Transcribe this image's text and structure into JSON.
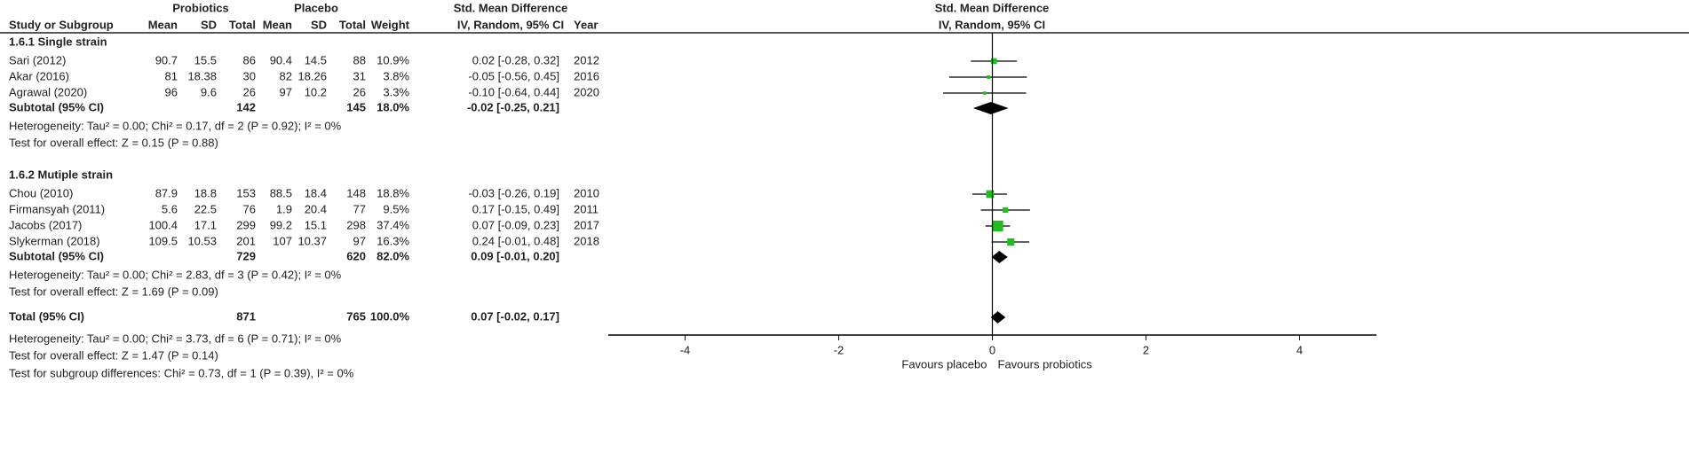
{
  "chart_data": {
    "type": "forest",
    "title": "Std. Mean Difference",
    "subtitle": "IV, Random, 95% CI",
    "headers": {
      "group1": "Probiotics",
      "group2": "Placebo",
      "effect": "Std. Mean Difference",
      "columns": [
        "Study or Subgroup",
        "Mean",
        "SD",
        "Total",
        "Mean",
        "SD",
        "Total",
        "Weight",
        "IV, Random, 95% CI",
        "Year"
      ]
    },
    "subgroups": [
      {
        "title": "1.6.1 Single strain",
        "studies": [
          {
            "study": "Sari (2012)",
            "mean1": 90.7,
            "sd1": 15.5,
            "total1": 86,
            "mean2": 90.4,
            "sd2": 14.5,
            "total2": 88,
            "weight": 10.9,
            "weight_label": "10.9%",
            "smd": 0.02,
            "lo": -0.28,
            "hi": 0.32,
            "ci_label": "0.02 [-0.28, 0.32]",
            "year": 2012
          },
          {
            "study": "Akar (2016)",
            "mean1": 81,
            "sd1": 18.38,
            "total1": 30,
            "mean2": 82,
            "sd2": 18.26,
            "total2": 31,
            "weight": 3.8,
            "weight_label": "3.8%",
            "smd": -0.05,
            "lo": -0.56,
            "hi": 0.45,
            "ci_label": "-0.05 [-0.56, 0.45]",
            "year": 2016
          },
          {
            "study": "Agrawal (2020)",
            "mean1": 96,
            "sd1": 9.6,
            "total1": 26,
            "mean2": 97,
            "sd2": 10.2,
            "total2": 26,
            "weight": 3.3,
            "weight_label": "3.3%",
            "smd": -0.1,
            "lo": -0.64,
            "hi": 0.44,
            "ci_label": "-0.10 [-0.64, 0.44]",
            "year": 2020
          }
        ],
        "subtotal": {
          "label": "Subtotal (95% CI)",
          "total1": 142,
          "total2": 145,
          "weight_label": "18.0%",
          "smd": -0.02,
          "lo": -0.25,
          "hi": 0.21,
          "ci_label": "-0.02 [-0.25, 0.21]"
        },
        "heterogeneity": "Heterogeneity: Tau² = 0.00; Chi² = 0.17, df = 2 (P = 0.92); I² = 0%",
        "overall_effect": "Test for overall effect: Z = 0.15 (P = 0.88)"
      },
      {
        "title": "1.6.2 Mutiple strain",
        "studies": [
          {
            "study": "Chou (2010)",
            "mean1": 87.9,
            "sd1": 18.8,
            "total1": 153,
            "mean2": 88.5,
            "sd2": 18.4,
            "total2": 148,
            "weight": 18.8,
            "weight_label": "18.8%",
            "smd": -0.03,
            "lo": -0.26,
            "hi": 0.19,
            "ci_label": "-0.03 [-0.26, 0.19]",
            "year": 2010
          },
          {
            "study": "Firmansyah (2011)",
            "mean1": 5.6,
            "sd1": 22.5,
            "total1": 76,
            "mean2": 1.9,
            "sd2": 20.4,
            "total2": 77,
            "weight": 9.5,
            "weight_label": "9.5%",
            "smd": 0.17,
            "lo": -0.15,
            "hi": 0.49,
            "ci_label": "0.17 [-0.15, 0.49]",
            "year": 2011
          },
          {
            "study": "Jacobs (2017)",
            "mean1": 100.4,
            "sd1": 17.1,
            "total1": 299,
            "mean2": 99.2,
            "sd2": 15.1,
            "total2": 298,
            "weight": 37.4,
            "weight_label": "37.4%",
            "smd": 0.07,
            "lo": -0.09,
            "hi": 0.23,
            "ci_label": "0.07 [-0.09, 0.23]",
            "year": 2017
          },
          {
            "study": "Slykerman (2018)",
            "mean1": 109.5,
            "sd1": 10.53,
            "total1": 201,
            "mean2": 107,
            "sd2": 10.37,
            "total2": 97,
            "weight": 16.3,
            "weight_label": "16.3%",
            "smd": 0.24,
            "lo": -0.01,
            "hi": 0.48,
            "ci_label": "0.24 [-0.01, 0.48]",
            "year": 2018
          }
        ],
        "subtotal": {
          "label": "Subtotal (95% CI)",
          "total1": 729,
          "total2": 620,
          "weight_label": "82.0%",
          "smd": 0.09,
          "lo": -0.01,
          "hi": 0.2,
          "ci_label": "0.09 [-0.01, 0.20]"
        },
        "heterogeneity": "Heterogeneity: Tau² = 0.00; Chi² = 2.83, df = 3 (P = 0.42); I² = 0%",
        "overall_effect": "Test for overall effect: Z = 1.69 (P = 0.09)"
      }
    ],
    "total": {
      "label": "Total (95% CI)",
      "total1": 871,
      "total2": 765,
      "weight_label": "100.0%",
      "smd": 0.07,
      "lo": -0.02,
      "hi": 0.17,
      "ci_label": "0.07 [-0.02, 0.17]",
      "heterogeneity": "Heterogeneity: Tau² = 0.00; Chi² = 3.73, df = 6 (P = 0.71); I² = 0%",
      "overall_effect": "Test for overall effect: Z = 1.47 (P = 0.14)",
      "subgroup_differences": "Test for subgroup differences: Chi² = 0.73, df = 1 (P = 0.39), I² = 0%"
    },
    "xlim": [
      -5,
      5
    ],
    "xticks": [
      -4,
      -2,
      0,
      2,
      4
    ],
    "x_label_left": "Favours placebo",
    "x_label_right": "Favours probiotics",
    "marker_color": "#22bb22",
    "diamond_color": "#000000"
  }
}
